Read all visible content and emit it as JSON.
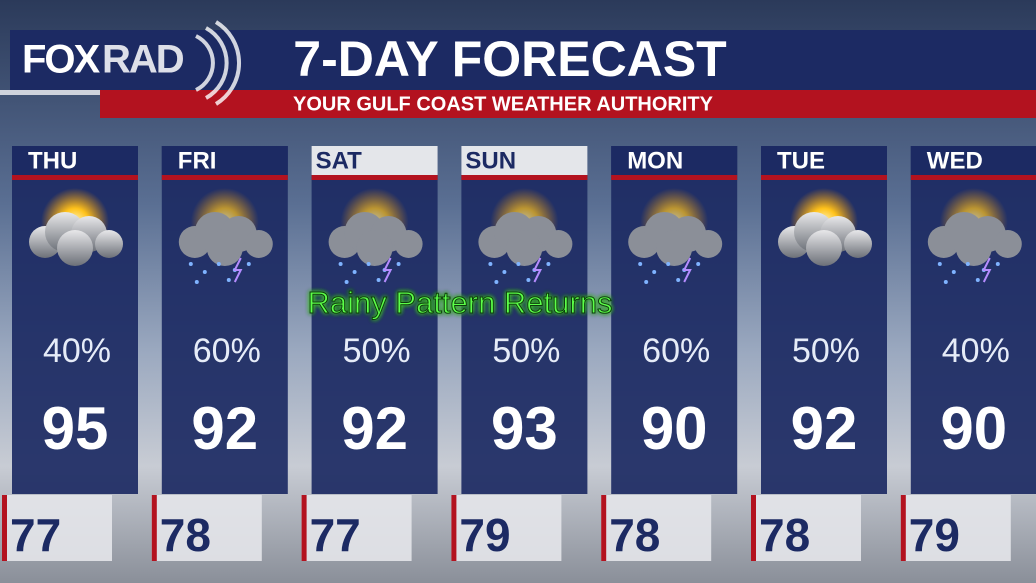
{
  "logo": {
    "left": "FOX",
    "right": "RAD"
  },
  "header": {
    "title": "7-DAY FORECAST",
    "subtitle": "YOUR GULF COAST WEATHER AUTHORITY"
  },
  "annotation": "Rainy Pattern Returns",
  "days": [
    {
      "name": "THU",
      "precip": "40%",
      "high": "95",
      "low": "77"
    },
    {
      "name": "FRI",
      "precip": "60%",
      "high": "92",
      "low": "78"
    },
    {
      "name": "SAT",
      "precip": "50%",
      "high": "92",
      "low": "77"
    },
    {
      "name": "SUN",
      "precip": "50%",
      "high": "93",
      "low": "79"
    },
    {
      "name": "MON",
      "precip": "60%",
      "high": "90",
      "low": "78"
    },
    {
      "name": "TUE",
      "precip": "50%",
      "high": "92",
      "low": "78"
    },
    {
      "name": "WED",
      "precip": "40%",
      "high": "90",
      "low": "79"
    }
  ]
}
